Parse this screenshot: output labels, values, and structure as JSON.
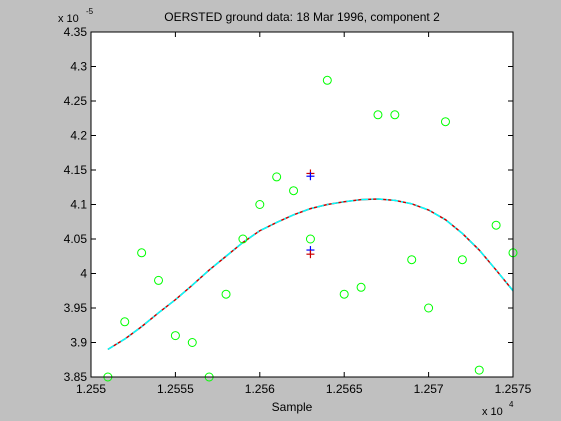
{
  "window": {
    "background": "#c0c0c0"
  },
  "chart_data": {
    "type": "scatter",
    "title": "OERSTED ground data: 18 Mar 1996, component 2",
    "xlabel": "Sample",
    "ylabel": "",
    "x_multiplier_label": "x 10",
    "x_multiplier_exp": "4",
    "y_multiplier_label": "x 10",
    "y_multiplier_exp": "-5",
    "xlim": [
      1.255,
      1.2575
    ],
    "ylim": [
      3.85,
      4.35
    ],
    "x_ticks": [
      1.255,
      1.2555,
      1.256,
      1.2565,
      1.257,
      1.2575
    ],
    "x_tick_labels": [
      "1.255",
      "1.2555",
      "1.256",
      "1.2565",
      "1.257",
      "1.2575"
    ],
    "y_ticks": [
      3.85,
      3.9,
      3.95,
      4.0,
      4.05,
      4.1,
      4.15,
      4.2,
      4.25,
      4.3,
      4.35
    ],
    "y_tick_labels": [
      "3.85",
      "3.9",
      "3.95",
      "4",
      "4.05",
      "4.1",
      "4.15",
      "4.2",
      "4.25",
      "4.3",
      "4.35"
    ],
    "grid": false,
    "axes_background": "#ffffff",
    "series": [
      {
        "kind": "markers-circle",
        "color": "#00ff00",
        "x": [
          1.2551,
          1.2552,
          1.2553,
          1.2554,
          1.2555,
          1.2556,
          1.2557,
          1.2558,
          1.2559,
          1.256,
          1.2561,
          1.2562,
          1.2563,
          1.2564,
          1.2565,
          1.2566,
          1.2567,
          1.2568,
          1.2569,
          1.257,
          1.2571,
          1.2572,
          1.2573,
          1.2574,
          1.2575
        ],
        "y": [
          3.85,
          3.93,
          4.03,
          3.99,
          3.91,
          3.9,
          3.85,
          3.97,
          4.05,
          4.1,
          4.14,
          4.12,
          4.05,
          4.28,
          3.97,
          3.98,
          4.23,
          4.23,
          4.02,
          3.95,
          4.22,
          4.02,
          3.86,
          4.07,
          4.03
        ]
      },
      {
        "kind": "fit-line",
        "style": "dashdot",
        "colors": [
          "#cc0000",
          "#00ffff"
        ],
        "x": [
          1.2551,
          1.2552,
          1.2553,
          1.2554,
          1.2555,
          1.2556,
          1.2557,
          1.2558,
          1.2559,
          1.256,
          1.2561,
          1.2562,
          1.2563,
          1.2564,
          1.2565,
          1.2566,
          1.2567,
          1.2568,
          1.2569,
          1.257,
          1.2571,
          1.2572,
          1.2573,
          1.2574,
          1.2575
        ],
        "y": [
          3.89,
          3.905,
          3.923,
          3.943,
          3.962,
          3.983,
          4.005,
          4.025,
          4.045,
          4.062,
          4.074,
          4.085,
          4.094,
          4.1,
          4.104,
          4.107,
          4.108,
          4.106,
          4.101,
          4.092,
          4.078,
          4.058,
          4.034,
          4.005,
          3.975
        ]
      },
      {
        "kind": "plus-markers",
        "x": 1.2563,
        "points": [
          {
            "y": 4.145,
            "color": "#cc0000"
          },
          {
            "y": 4.141,
            "color": "#0000ff"
          },
          {
            "y": 4.034,
            "color": "#0000ff"
          },
          {
            "y": 4.028,
            "color": "#cc0000"
          }
        ]
      }
    ]
  }
}
